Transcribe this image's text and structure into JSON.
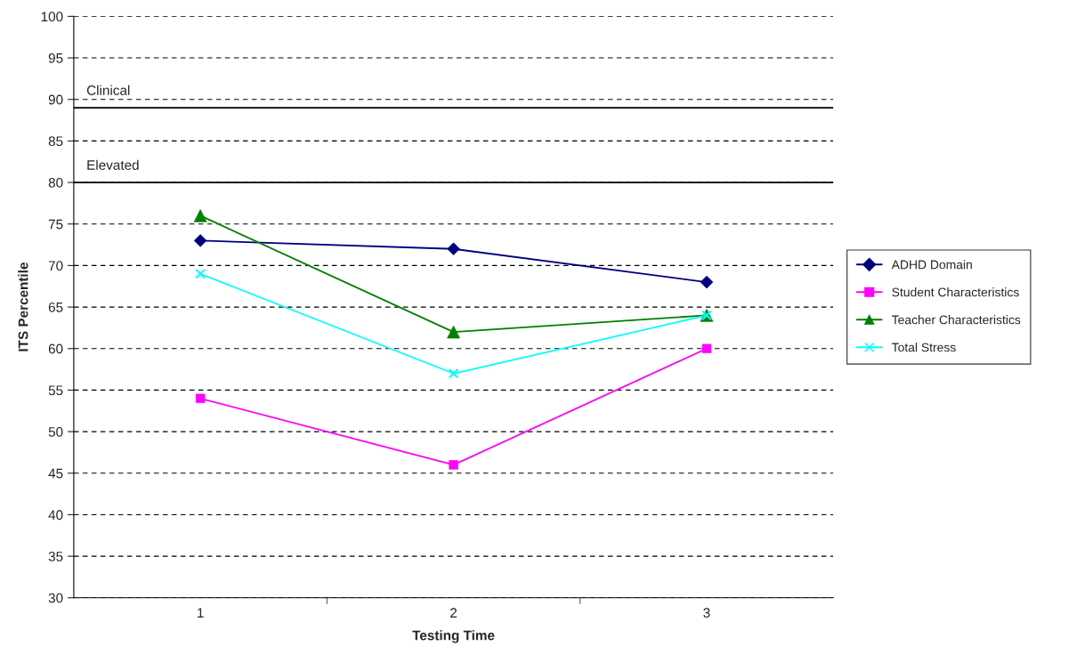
{
  "chart_data": {
    "type": "line",
    "xlabel": "Testing Time",
    "ylabel": "ITS Percentile",
    "categories": [
      "1",
      "2",
      "3"
    ],
    "series": [
      {
        "name": "ADHD Domain",
        "color": "#000080",
        "marker": "diamond",
        "values": [
          73,
          72,
          68
        ]
      },
      {
        "name": "Student Characteristics",
        "color": "#ff00ff",
        "marker": "square",
        "values": [
          54,
          46,
          60
        ]
      },
      {
        "name": "Teacher Characteristics",
        "color": "#008000",
        "marker": "triangle",
        "values": [
          76,
          62,
          64
        ]
      },
      {
        "name": "Total Stress",
        "color": "#00ffff",
        "marker": "cross",
        "values": [
          69,
          57,
          64
        ]
      }
    ],
    "ylim": [
      30,
      100
    ],
    "yticks": [
      30,
      35,
      40,
      45,
      50,
      55,
      60,
      65,
      70,
      75,
      80,
      85,
      90,
      95,
      100
    ],
    "grid": "y",
    "legend": "right",
    "line_style": "solid",
    "ref_lines": [
      {
        "axis": "y",
        "value": 89,
        "label": "Clinical",
        "color": "#000000"
      },
      {
        "axis": "y",
        "value": 80,
        "label": "Elevated",
        "color": "#000000"
      }
    ]
  }
}
